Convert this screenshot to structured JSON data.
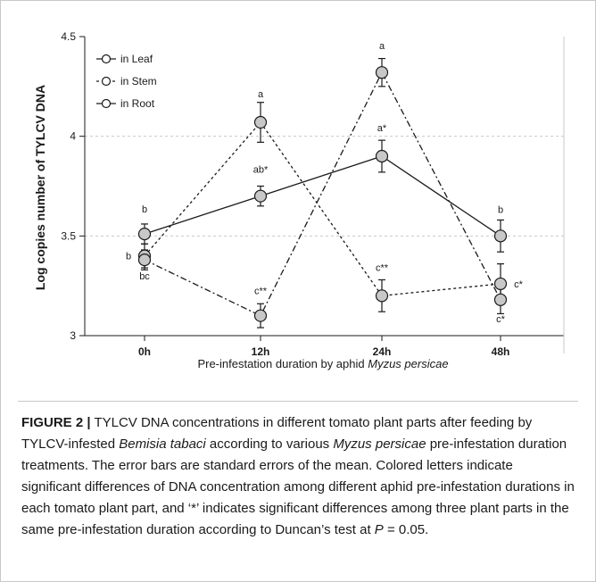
{
  "chart_data": {
    "type": "line",
    "categories": [
      "0h",
      "12h",
      "24h",
      "48h"
    ],
    "xlabel_prefix": "Pre-infestation duration by aphid ",
    "xlabel_italic": "Myzus persicae",
    "ylabel": "Log copies number of TYLCV DNA",
    "ylim": [
      3,
      4.5
    ],
    "yticks": [
      "3",
      "3.5",
      "4",
      "4.5"
    ],
    "grid": "horizontal dashed",
    "legend_position": "top-left",
    "series": [
      {
        "name": "in Leaf",
        "line_style": "solid",
        "values": [
          3.51,
          3.7,
          3.9,
          3.5
        ],
        "errors": [
          0.05,
          0.05,
          0.08,
          0.08
        ],
        "labels": [
          "b",
          "ab*",
          "a*",
          "b"
        ]
      },
      {
        "name": "in Stem",
        "line_style": "dashed",
        "values": [
          3.4,
          4.07,
          3.2,
          3.26
        ],
        "errors": [
          0.06,
          0.1,
          0.08,
          0.1
        ],
        "labels": [
          "b",
          "a",
          "c**",
          "c*"
        ]
      },
      {
        "name": "in Root",
        "line_style": "dash-dot",
        "values": [
          3.38,
          3.1,
          4.32,
          3.18
        ],
        "errors": [
          0.05,
          0.06,
          0.07,
          0.07
        ],
        "labels": [
          "bc",
          "c**",
          "a",
          "c*"
        ]
      }
    ]
  },
  "caption": {
    "figure_label": "FIGURE 2",
    "separator": "|",
    "t1": " TYLCV DNA concentrations in different tomato plant parts after feeding by TYLCV-infested ",
    "i1": "Bemisia tabaci",
    "t2": " according to various ",
    "i2": "Myzus persicae",
    "t3": " pre-infestation duration treatments. The error bars are standard errors of the mean. Colored letters indicate significant differences of DNA concentration among different aphid pre-infestation durations in each tomato plant part, and ‘*’ indicates significant differences among three plant parts in the same pre-infestation duration according to Duncan’s test at ",
    "i3": "P",
    "t4": " = 0.05."
  },
  "colors": {
    "line": "#1a1a1a",
    "marker_fill": "#c8c8c8",
    "grid": "#c8c8c8",
    "rule": "#c8c8c8"
  }
}
